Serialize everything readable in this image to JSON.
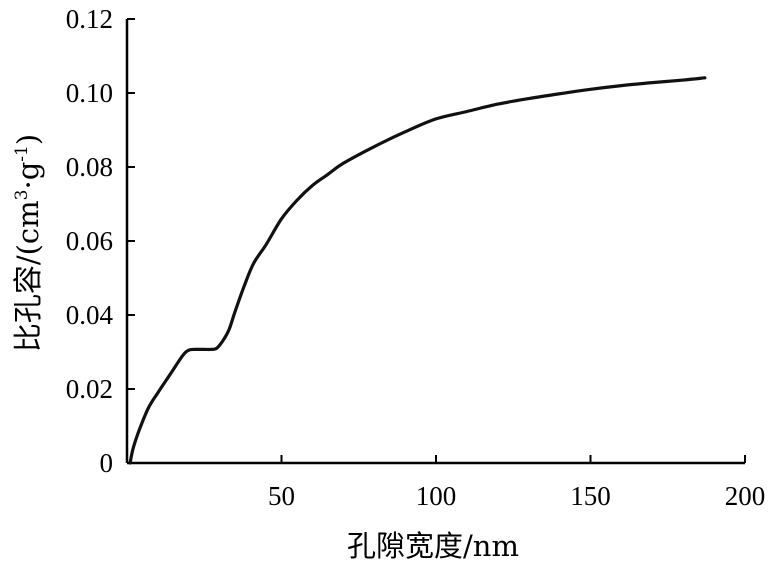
{
  "chart_data": {
    "type": "line",
    "title": "",
    "xlabel": "孔隙宽度/nm",
    "ylabel_main": "比孔容/(cm",
    "ylabel_sup1": "3",
    "ylabel_mid": "·g",
    "ylabel_sup2": "-1",
    "ylabel_end": ")",
    "xlim": [
      0,
      200
    ],
    "ylim": [
      0,
      0.12
    ],
    "x_ticks": [
      50,
      100,
      150,
      200
    ],
    "x_tick_labels": [
      "50",
      "100",
      "150",
      "200"
    ],
    "y_ticks": [
      0,
      0.02,
      0.04,
      0.06,
      0.08,
      0.1,
      0.12
    ],
    "y_tick_labels": [
      "0",
      "0.02",
      "0.04",
      "0.06",
      "0.08",
      "0.10",
      "0.12"
    ],
    "grid": false,
    "legend": "none",
    "series": [
      {
        "color": "#111111",
        "x": [
          1,
          2,
          4,
          7,
          10,
          14,
          18,
          20,
          22,
          25,
          27,
          29,
          31,
          33,
          35,
          38,
          41,
          45,
          50,
          55,
          60,
          65,
          70,
          80,
          90,
          100,
          110,
          120,
          130,
          140,
          150,
          160,
          170,
          180,
          187
        ],
        "y": [
          0.0,
          0.004,
          0.009,
          0.015,
          0.019,
          0.024,
          0.029,
          0.0305,
          0.0307,
          0.0307,
          0.0307,
          0.031,
          0.033,
          0.036,
          0.041,
          0.048,
          0.054,
          0.059,
          0.066,
          0.071,
          0.075,
          0.078,
          0.081,
          0.0855,
          0.0895,
          0.093,
          0.095,
          0.097,
          0.0985,
          0.0998,
          0.101,
          0.102,
          0.1028,
          0.1035,
          0.1041
        ]
      }
    ]
  }
}
